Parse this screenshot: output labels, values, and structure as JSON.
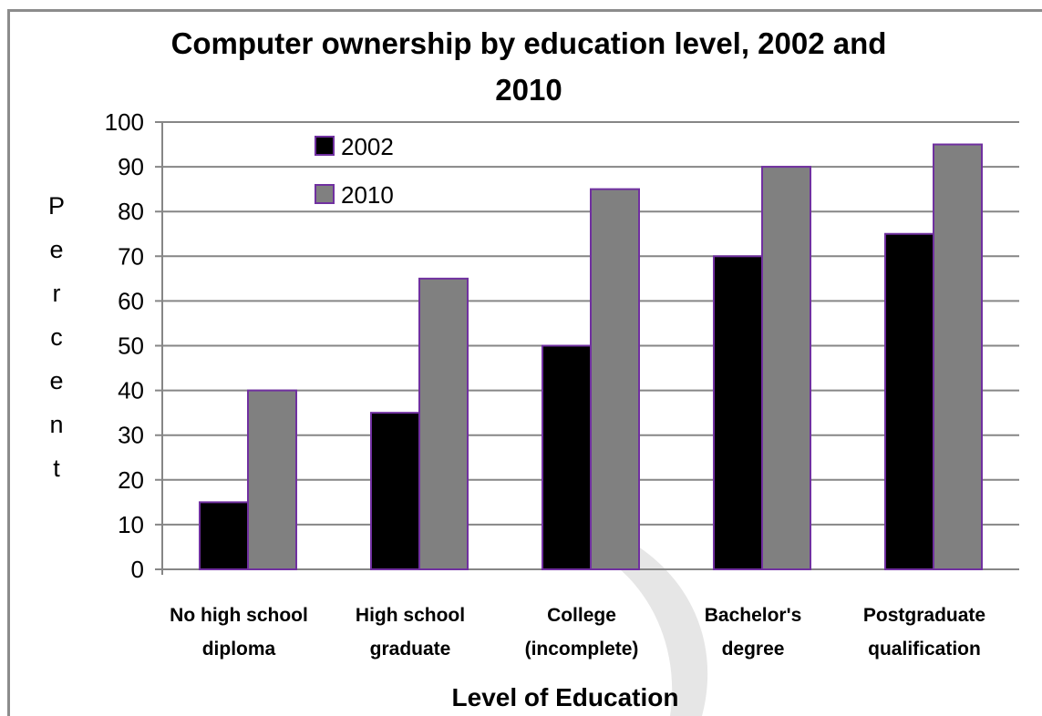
{
  "chart_data": {
    "type": "bar",
    "title": "Computer ownership by education level, 2002 and 2010",
    "title_lines": [
      "Computer ownership by education level, 2002 and",
      "2010"
    ],
    "xlabel": "Level of Education",
    "ylabel": "Percent",
    "ylim": [
      0,
      100
    ],
    "yticks": [
      "0",
      "10",
      "20",
      "30",
      "40",
      "50",
      "60",
      "70",
      "80",
      "90",
      "100"
    ],
    "grid": true,
    "legend_position": "top-left",
    "categories": [
      [
        "No high school",
        "diploma"
      ],
      [
        "High school",
        "graduate"
      ],
      [
        "College",
        "(incomplete)"
      ],
      [
        "Bachelor's",
        "degree"
      ],
      [
        "Postgraduate",
        "qualification"
      ]
    ],
    "series": [
      {
        "name": "2002",
        "color": "#000000",
        "values": [
          15,
          35,
          50,
          70,
          75
        ]
      },
      {
        "name": "2010",
        "color": "#808080",
        "values": [
          40,
          65,
          85,
          90,
          95
        ]
      }
    ],
    "bar_edge_color": "#7030a0",
    "grid_color": "#868686"
  }
}
